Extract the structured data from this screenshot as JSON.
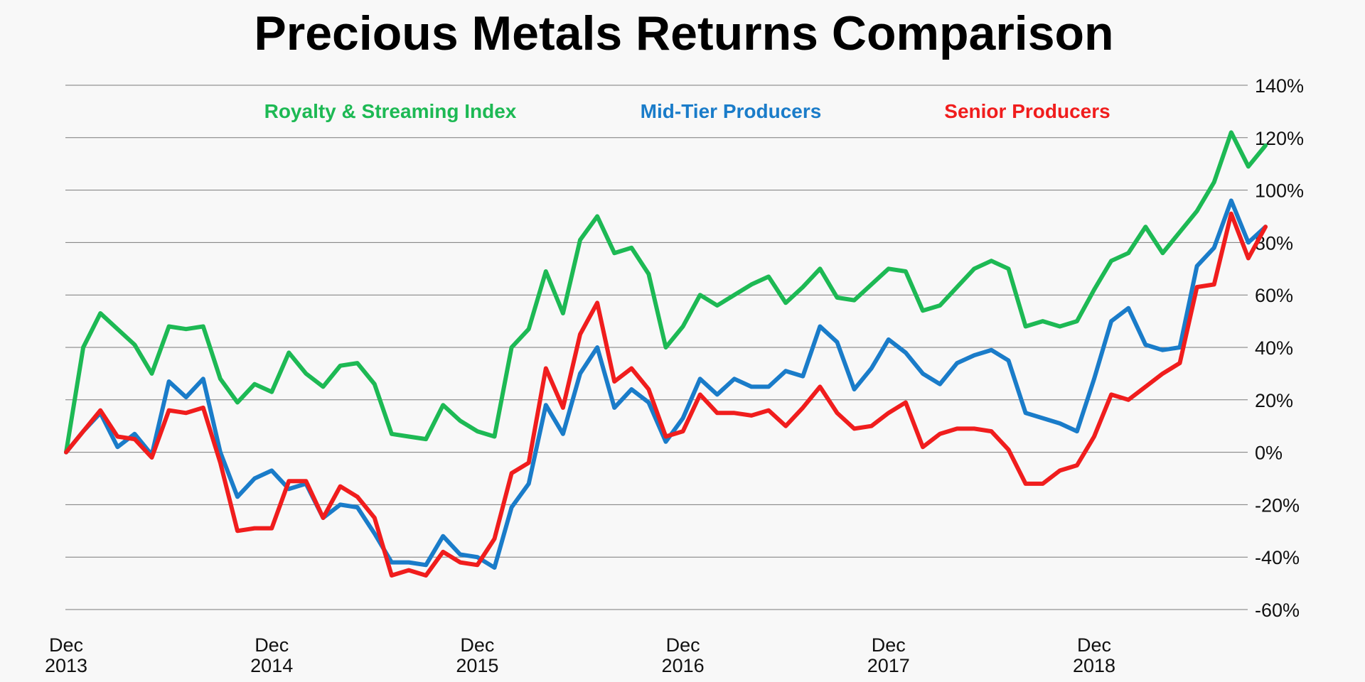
{
  "chart_data": {
    "type": "line",
    "title": "Precious Metals Returns Comparison",
    "xlabel": "",
    "ylabel": "",
    "ylim": [
      -60,
      140
    ],
    "y_ticks": [
      "140%",
      "120%",
      "100%",
      "80%",
      "60%",
      "40%",
      "20%",
      "0%",
      "-20%",
      "-40%",
      "-60%"
    ],
    "y_tick_values": [
      140,
      120,
      100,
      80,
      60,
      40,
      20,
      0,
      -20,
      -40,
      -60
    ],
    "y_axis_side": "right",
    "grid": "horizontal",
    "legend_position": "top",
    "x_ticks": [
      {
        "month": "Dec",
        "year": "2013"
      },
      {
        "month": "Dec",
        "year": "2014"
      },
      {
        "month": "Dec",
        "year": "2015"
      },
      {
        "month": "Dec",
        "year": "2016"
      },
      {
        "month": "Dec",
        "year": "2017"
      },
      {
        "month": "Dec",
        "year": "2018"
      }
    ],
    "x_start": "2013-12",
    "x_end": "2019-08",
    "x_frequency": "monthly",
    "series": [
      {
        "name": "Royalty & Streaming Index",
        "color": "#1db954",
        "values": [
          0,
          40,
          53,
          47,
          41,
          30,
          48,
          47,
          48,
          28,
          19,
          26,
          23,
          38,
          30,
          25,
          33,
          34,
          26,
          7,
          6,
          5,
          18,
          12,
          8,
          6,
          40,
          47,
          69,
          53,
          81,
          90,
          76,
          78,
          68,
          40,
          48,
          60,
          56,
          60,
          64,
          67,
          57,
          63,
          70,
          59,
          58,
          64,
          70,
          69,
          54,
          56,
          63,
          70,
          73,
          70,
          48,
          50,
          48,
          50,
          62,
          73,
          76,
          86,
          76,
          84,
          92,
          103,
          122,
          109,
          117
        ]
      },
      {
        "name": "Mid-Tier Producers",
        "color": "#1a7cc9",
        "values": [
          0,
          8,
          15,
          2,
          7,
          -1,
          27,
          21,
          28,
          0,
          -17,
          -10,
          -7,
          -14,
          -12,
          -25,
          -20,
          -21,
          -31,
          -42,
          -42,
          -43,
          -32,
          -39,
          -40,
          -44,
          -21,
          -12,
          18,
          7,
          30,
          40,
          17,
          24,
          19,
          4,
          13,
          28,
          22,
          28,
          25,
          25,
          31,
          29,
          48,
          42,
          24,
          32,
          43,
          38,
          30,
          26,
          34,
          37,
          39,
          35,
          15,
          13,
          11,
          8,
          28,
          50,
          55,
          41,
          39,
          40,
          71,
          78,
          96,
          80,
          86
        ]
      },
      {
        "name": "Senior Producers",
        "color": "#f01d1d",
        "values": [
          0,
          8,
          16,
          6,
          5,
          -2,
          16,
          15,
          17,
          -4,
          -30,
          -29,
          -29,
          -11,
          -11,
          -25,
          -13,
          -17,
          -25,
          -47,
          -45,
          -47,
          -38,
          -42,
          -43,
          -33,
          -8,
          -4,
          32,
          17,
          45,
          57,
          27,
          32,
          24,
          6,
          8,
          22,
          15,
          15,
          14,
          16,
          10,
          17,
          25,
          15,
          9,
          10,
          15,
          19,
          2,
          7,
          9,
          9,
          8,
          1,
          -12,
          -12,
          -7,
          -5,
          6,
          22,
          20,
          25,
          30,
          34,
          63,
          64,
          91,
          74,
          86
        ]
      }
    ]
  }
}
